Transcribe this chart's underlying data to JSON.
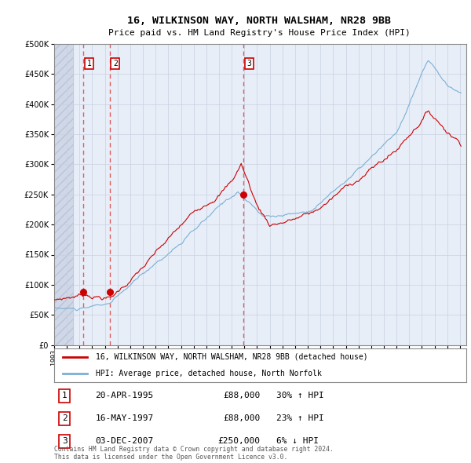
{
  "title_line1": "16, WILKINSON WAY, NORTH WALSHAM, NR28 9BB",
  "title_line2": "Price paid vs. HM Land Registry's House Price Index (HPI)",
  "legend_line1": "16, WILKINSON WAY, NORTH WALSHAM, NR28 9BB (detached house)",
  "legend_line2": "HPI: Average price, detached house, North Norfolk",
  "purchases": [
    {
      "num": 1,
      "date": "20-APR-1995",
      "price": 88000,
      "hpi_pct": "30%",
      "hpi_dir": "↑"
    },
    {
      "num": 2,
      "date": "16-MAY-1997",
      "price": 88000,
      "hpi_pct": "23%",
      "hpi_dir": "↑"
    },
    {
      "num": 3,
      "date": "03-DEC-2007",
      "price": 250000,
      "hpi_pct": "6%",
      "hpi_dir": "↓"
    }
  ],
  "footnote1": "Contains HM Land Registry data © Crown copyright and database right 2024.",
  "footnote2": "This data is licensed under the Open Government Licence v3.0.",
  "purchase_dates_decimal": [
    1995.303,
    1997.37,
    2007.92
  ],
  "purchase_prices": [
    88000,
    88000,
    250000
  ],
  "ylim": [
    0,
    500000
  ],
  "yticks": [
    0,
    50000,
    100000,
    150000,
    200000,
    250000,
    300000,
    350000,
    400000,
    450000,
    500000
  ],
  "xlim_left": 1993,
  "xlim_right": 2025.5,
  "hatch_end": 1994.5,
  "red_color": "#cc0000",
  "blue_color": "#7ab0d4",
  "dashed_red": "#dd4444",
  "grid_color": "#c8d0e0",
  "chart_bg_color": "#e8eef8",
  "hatch_bg_color": "#d0d8e8",
  "label_box_edge": "#cc0000"
}
